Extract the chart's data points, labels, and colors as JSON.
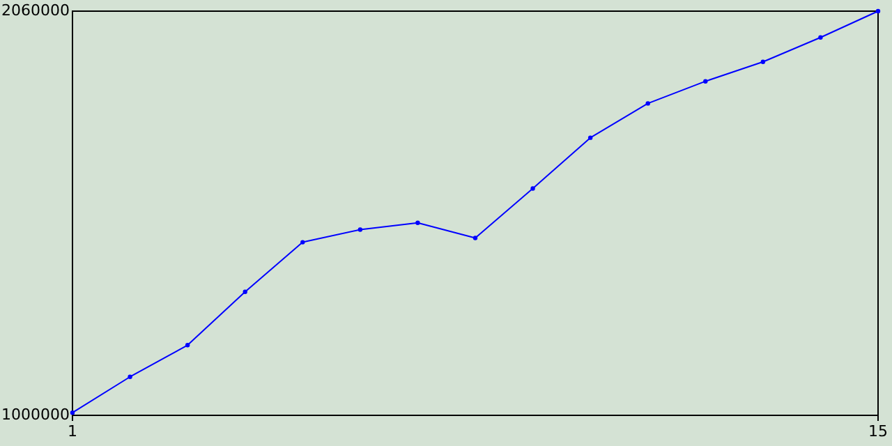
{
  "chart_data": {
    "type": "line",
    "x": [
      1,
      2,
      3,
      4,
      5,
      6,
      7,
      8,
      9,
      10,
      11,
      12,
      13,
      14,
      15
    ],
    "series": [
      {
        "color": "#0000ff",
        "values": [
          1007000,
          1101000,
          1184000,
          1324000,
          1454000,
          1487000,
          1505000,
          1465000,
          1595000,
          1728000,
          1818000,
          1876000,
          1927000,
          1991000,
          2060000
        ]
      }
    ],
    "xlim": [
      1,
      15
    ],
    "ylim": [
      1000000,
      2060000
    ],
    "xticks": [
      1,
      15
    ],
    "yticks": [
      1000000,
      2060000
    ],
    "marker": "circle",
    "line_style": "solid"
  }
}
